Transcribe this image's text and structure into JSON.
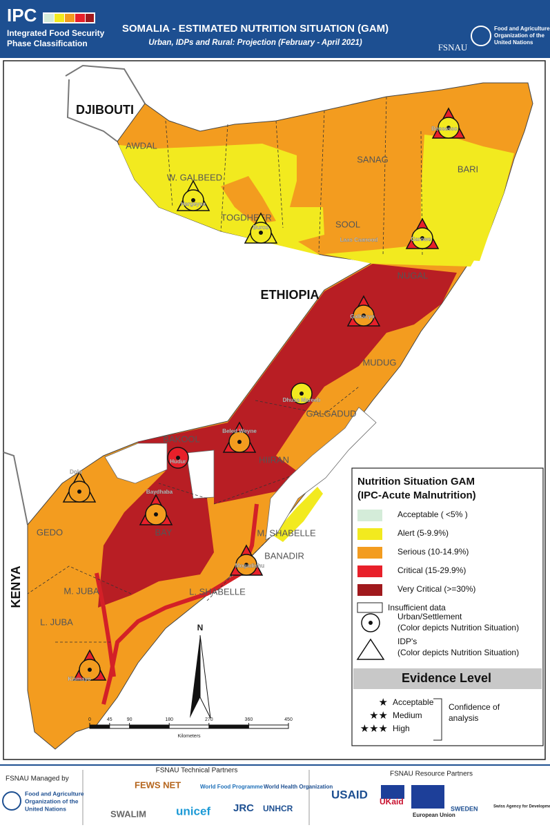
{
  "header": {
    "logo": "IPC",
    "org": [
      "Integrated Food Security",
      "Phase Classification"
    ],
    "title": "SOMALIA - ESTIMATED NUTRITION SITUATION (GAM)",
    "subtitle": "Urban, IDPs and Rural: Projection (February - April 2021)",
    "fsnau": "FSNAU",
    "fao": [
      "Food and Agriculture",
      "Organization of the",
      "United Nations"
    ]
  },
  "map": {
    "countries": [
      "DJIBOUTI",
      "ETHIOPIA",
      "KENYA"
    ],
    "regions": [
      "AWDAL",
      "W. GALBEED",
      "TOGDHEER",
      "SANAG",
      "SOOL",
      "BARI",
      "NUGAL",
      "MUDUG",
      "GALGADUD",
      "HIIRAN",
      "BAKOOL",
      "BAY",
      "GEDO",
      "M. SHABELLE",
      "BANADIR",
      "L. SHABELLE",
      "M. JUBA",
      "L. JUBA"
    ],
    "towns": [
      "Hargeysa",
      "Burco",
      "Bossasso",
      "Laas Caanood",
      "Garowe",
      "Galkacyo",
      "Dhusa Mareeb",
      "Beled Weyne",
      "Hudur",
      "Baydhaba",
      "Dolo",
      "Mogadishu",
      "Kismayo"
    ],
    "north": "N",
    "scale": {
      "ticks": [
        0,
        45,
        90,
        180,
        270,
        360,
        450
      ],
      "unit": "Kilometers"
    }
  },
  "legend": {
    "title": [
      "Nutrition Situation GAM",
      "(IPC-Acute Malnutrition)"
    ],
    "items": [
      {
        "label": "Acceptable  ( <5% )",
        "color": "#d4ecd9"
      },
      {
        "label": "Alert  (5-9.9%)",
        "color": "#f2ea1f"
      },
      {
        "label": "Serious  (10-14.9%)",
        "color": "#f39c1f"
      },
      {
        "label": "Critical  (15-29.9%)",
        "color": "#e8202a"
      },
      {
        "label": "Very Critical  (>=30%)",
        "color": "#a0191d"
      },
      {
        "label": "Insufficient data",
        "color": "#ffffff"
      }
    ],
    "urban": [
      "Urban/Settlement",
      "(Color depicts Nutrition Situation)"
    ],
    "idp": [
      "IDP's",
      "(Color depicts Nutrition Situation)"
    ]
  },
  "evidence": {
    "title": "Evidence Level",
    "levels": [
      "Acceptable",
      "Medium",
      "High"
    ],
    "confidence": [
      "Confidence of",
      "analysis"
    ]
  },
  "footer": {
    "managed": "FSNAU Managed by",
    "fao": [
      "Food and Agriculture",
      "Organization of the",
      "United Nations"
    ],
    "technical": "FSNAU Technical Partners",
    "tech_partners": [
      "FEWS NET",
      "World Food Programme",
      "World Health Organization",
      "SWALIM",
      "unicef",
      "JRC",
      "UNHCR"
    ],
    "resource": "FSNAU Resource Partners",
    "resource_partners": [
      "USAID",
      "UKaid",
      "European Union",
      "SWEDEN",
      "Swiss Agency for Development and Cooperation SDC"
    ]
  }
}
